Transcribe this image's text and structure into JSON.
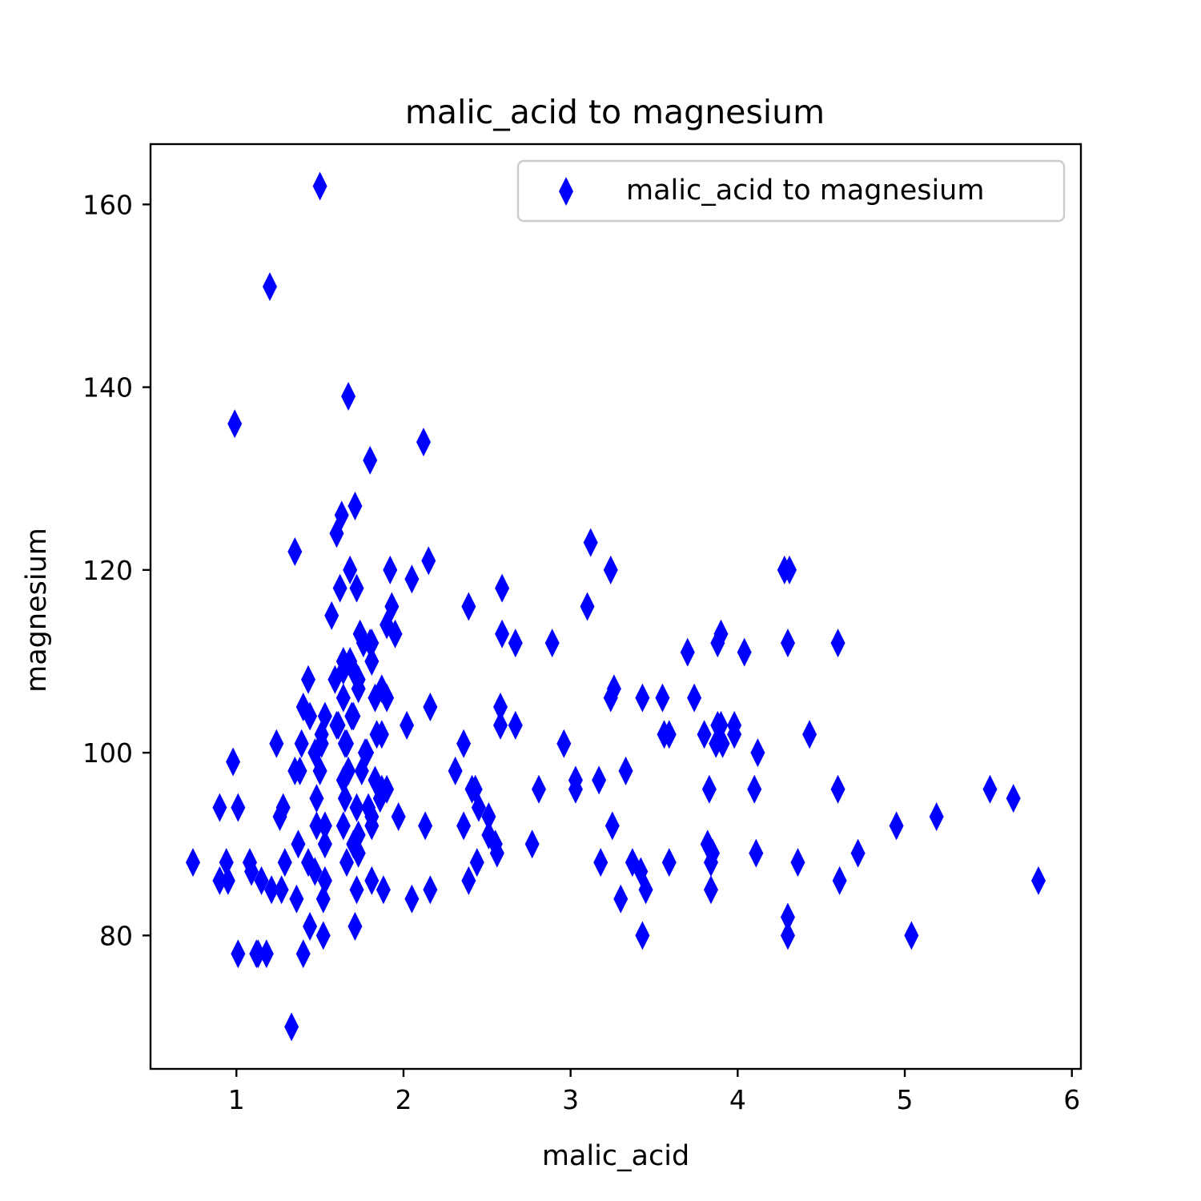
{
  "chart_data": {
    "type": "scatter",
    "title": "malic_acid to magnesium",
    "xlabel": "malic_acid",
    "ylabel": "magnesium",
    "xlim": [
      0.486,
      6.054
    ],
    "ylim": [
      65.4,
      166.6
    ],
    "xticks": [
      1,
      2,
      3,
      4,
      5,
      6
    ],
    "yticks": [
      80,
      100,
      120,
      140,
      160
    ],
    "xtick_labels": [
      "1",
      "2",
      "3",
      "4",
      "5",
      "6"
    ],
    "ytick_labels": [
      "80",
      "100",
      "120",
      "140",
      "160"
    ],
    "grid": false,
    "legend": {
      "position": "top-right",
      "entries": [
        "malic_acid to magnesium"
      ]
    },
    "marker": "thin_diamond",
    "color": "#0000ff",
    "series": [
      {
        "name": "malic_acid to magnesium",
        "points": [
          [
            1.71,
            127
          ],
          [
            1.78,
            100
          ],
          [
            2.36,
            101
          ],
          [
            1.95,
            113
          ],
          [
            2.59,
            118
          ],
          [
            1.76,
            112
          ],
          [
            1.87,
            96
          ],
          [
            2.15,
            121
          ],
          [
            1.64,
            97
          ],
          [
            1.35,
            98
          ],
          [
            2.16,
            105
          ],
          [
            1.48,
            95
          ],
          [
            1.73,
            89
          ],
          [
            1.73,
            91
          ],
          [
            1.87,
            102
          ],
          [
            1.81,
            112
          ],
          [
            1.92,
            120
          ],
          [
            1.57,
            115
          ],
          [
            1.59,
            108
          ],
          [
            3.1,
            116
          ],
          [
            1.63,
            126
          ],
          [
            3.8,
            102
          ],
          [
            1.86,
            95
          ],
          [
            1.6,
            124
          ],
          [
            2.51,
            93
          ],
          [
            1.79,
            94
          ],
          [
            1.87,
            107
          ],
          [
            1.9,
            96
          ],
          [
            1.51,
            101
          ],
          [
            1.83,
            106
          ],
          [
            1.53,
            104
          ],
          [
            1.8,
            132
          ],
          [
            1.81,
            110
          ],
          [
            1.53,
            92
          ],
          [
            1.65,
            95
          ],
          [
            1.5,
            162
          ],
          [
            1.75,
            98
          ],
          [
            1.66,
            101
          ],
          [
            1.51,
            102
          ],
          [
            1.7,
            104
          ],
          [
            1.64,
            109
          ],
          [
            1.73,
            108
          ],
          [
            1.4,
            105
          ],
          [
            1.9,
            114
          ],
          [
            1.68,
            120
          ],
          [
            1.72,
            118
          ],
          [
            1.6,
            103
          ],
          [
            1.65,
            101
          ],
          [
            1.69,
            104
          ],
          [
            1.7,
            109
          ],
          [
            1.72,
            94
          ],
          [
            1.74,
            113
          ],
          [
            1.81,
            92
          ],
          [
            1.64,
            106
          ],
          [
            1.67,
            98
          ],
          [
            1.77,
            100
          ],
          [
            1.8,
            112
          ],
          [
            1.93,
            116
          ],
          [
            1.62,
            118
          ],
          [
            1.68,
            110
          ],
          [
            0.94,
            88
          ],
          [
            1.39,
            101
          ],
          [
            1.52,
            80
          ],
          [
            1.61,
            103
          ],
          [
            2.16,
            85
          ],
          [
            2.13,
            92
          ],
          [
            1.2,
            151
          ],
          [
            1.67,
            139
          ],
          [
            1.73,
            107
          ],
          [
            1.35,
            122
          ],
          [
            1.53,
            90
          ],
          [
            0.99,
            136
          ],
          [
            1.21,
            85
          ],
          [
            1.28,
            94
          ],
          [
            1.33,
            70
          ],
          [
            1.71,
            81
          ],
          [
            1.24,
            101
          ],
          [
            2.02,
            103
          ],
          [
            1.64,
            110
          ],
          [
            2.12,
            134
          ],
          [
            1.43,
            108
          ],
          [
            1.44,
            104
          ],
          [
            0.9,
            94
          ],
          [
            1.09,
            87
          ],
          [
            1.08,
            88
          ],
          [
            1.15,
            86
          ],
          [
            1.26,
            93
          ],
          [
            1.66,
            88
          ],
          [
            2.39,
            86
          ],
          [
            3.43,
            80
          ],
          [
            1.72,
            85
          ],
          [
            2.05,
            84
          ],
          [
            1.53,
            86
          ],
          [
            1.37,
            90
          ],
          [
            1.81,
            86
          ],
          [
            1.47,
            87
          ],
          [
            1.9,
            106
          ],
          [
            3.3,
            84
          ],
          [
            1.64,
            92
          ],
          [
            1.43,
            88
          ],
          [
            1.52,
            84
          ],
          [
            1.4,
            78
          ],
          [
            1.44,
            81
          ],
          [
            1.73,
            89
          ],
          [
            1.84,
            102
          ],
          [
            2.05,
            119
          ],
          [
            1.7,
            90
          ],
          [
            1.29,
            88
          ],
          [
            1.13,
            78
          ],
          [
            1.01,
            94
          ],
          [
            0.98,
            99
          ],
          [
            1.36,
            84
          ],
          [
            0.74,
            88
          ],
          [
            1.12,
            78
          ],
          [
            2.56,
            89
          ],
          [
            1.81,
            93
          ],
          [
            1.88,
            85
          ],
          [
            1.27,
            85
          ],
          [
            0.95,
            86
          ],
          [
            0.9,
            86
          ],
          [
            1.01,
            78
          ],
          [
            1.18,
            78
          ],
          [
            1.38,
            98
          ],
          [
            1.48,
            92
          ],
          [
            4.43,
            102
          ],
          [
            3.84,
            88
          ],
          [
            3.98,
            102
          ],
          [
            4.3,
            112
          ],
          [
            3.24,
            120
          ],
          [
            4.12,
            100
          ],
          [
            4.6,
            96
          ],
          [
            1.47,
            100
          ],
          [
            3.17,
            97
          ],
          [
            2.81,
            96
          ],
          [
            2.31,
            98
          ],
          [
            1.5,
            98
          ],
          [
            2.43,
            96
          ],
          [
            2.67,
            112
          ],
          [
            3.59,
            102
          ],
          [
            4.95,
            92
          ],
          [
            3.12,
            123
          ],
          [
            2.36,
            92
          ],
          [
            2.59,
            113
          ],
          [
            4.6,
            112
          ],
          [
            3.03,
            97
          ],
          [
            2.39,
            116
          ],
          [
            2.89,
            112
          ],
          [
            4.28,
            120
          ],
          [
            2.77,
            90
          ],
          [
            3.37,
            88
          ],
          [
            3.74,
            106
          ],
          [
            2.67,
            103
          ],
          [
            3.55,
            106
          ],
          [
            3.9,
            113
          ],
          [
            3.83,
            96
          ],
          [
            5.04,
            80
          ],
          [
            3.03,
            96
          ],
          [
            4.72,
            89
          ],
          [
            2.58,
            105
          ],
          [
            3.43,
            106
          ],
          [
            3.26,
            107
          ],
          [
            3.88,
            103
          ],
          [
            3.24,
            106
          ],
          [
            3.9,
            103
          ],
          [
            2.58,
            103
          ],
          [
            3.91,
            101
          ],
          [
            4.1,
            96
          ],
          [
            3.98,
            103
          ],
          [
            3.88,
            112
          ],
          [
            3.84,
            85
          ],
          [
            5.51,
            96
          ],
          [
            5.65,
            95
          ],
          [
            4.31,
            120
          ],
          [
            3.7,
            111
          ],
          [
            2.96,
            101
          ],
          [
            3.59,
            88
          ],
          [
            3.18,
            88
          ],
          [
            3.45,
            85
          ],
          [
            4.36,
            88
          ],
          [
            4.61,
            86
          ],
          [
            1.97,
            93
          ],
          [
            3.87,
            101
          ],
          [
            5.8,
            86
          ],
          [
            4.3,
            80
          ],
          [
            5.19,
            93
          ],
          [
            4.04,
            111
          ],
          [
            3.56,
            102
          ],
          [
            2.44,
            88
          ],
          [
            2.51,
            91
          ],
          [
            1.83,
            97
          ],
          [
            2.41,
            96
          ],
          [
            2.45,
            94
          ],
          [
            4.3,
            82
          ],
          [
            3.42,
            87
          ],
          [
            3.85,
            89
          ],
          [
            3.25,
            92
          ],
          [
            4.11,
            89
          ],
          [
            3.33,
            98
          ],
          [
            2.55,
            90
          ],
          [
            3.82,
            90
          ]
        ]
      }
    ]
  }
}
